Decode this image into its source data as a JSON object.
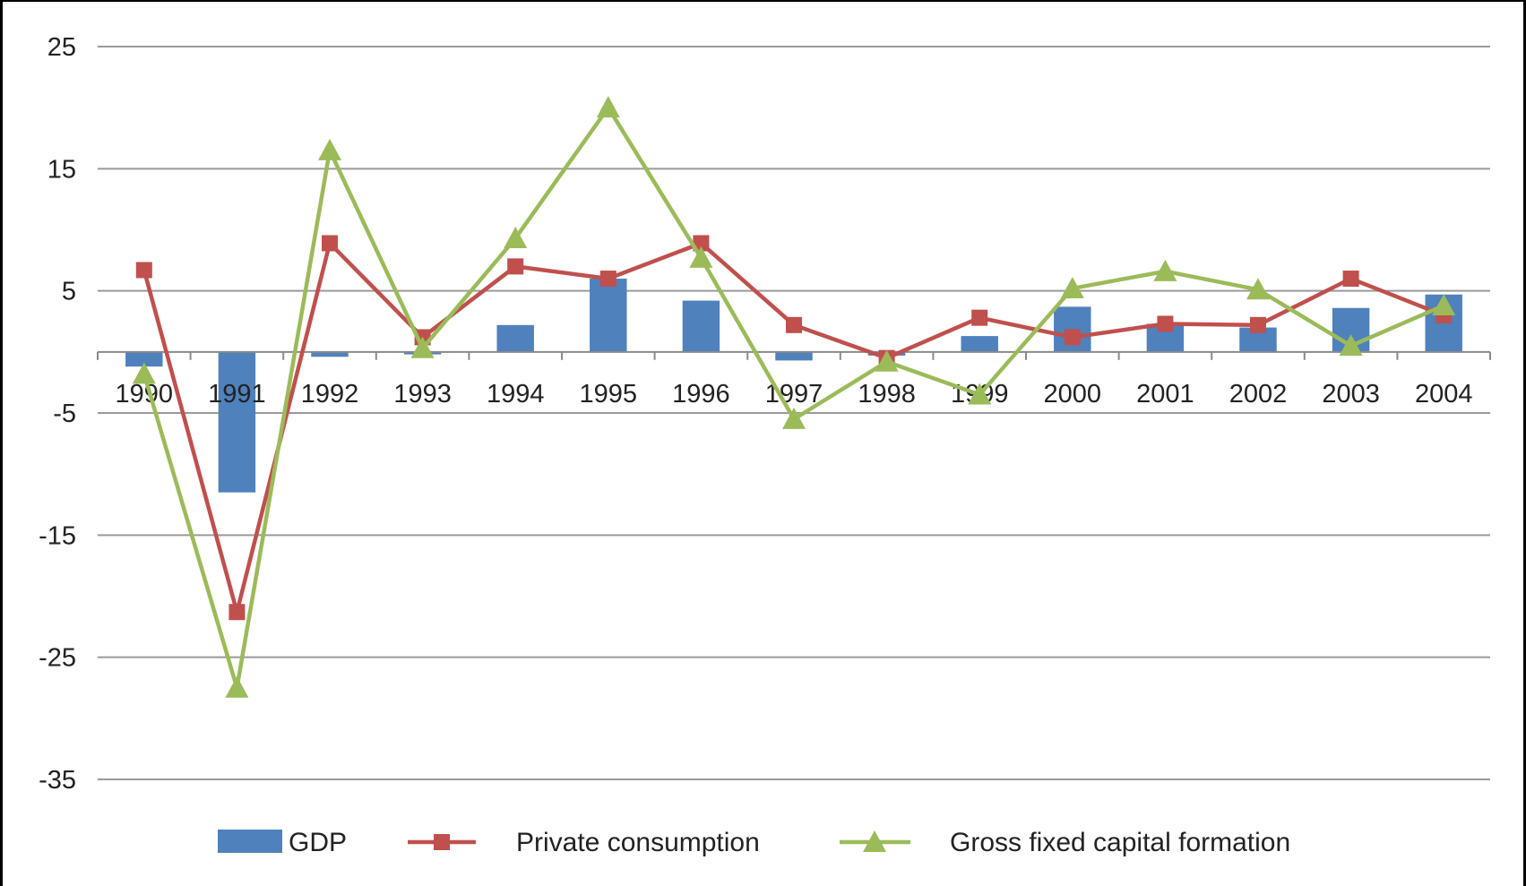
{
  "chart_data": {
    "type": "bar",
    "categories": [
      "1990",
      "1991",
      "1992",
      "1993",
      "1994",
      "1995",
      "1996",
      "1997",
      "1998",
      "1999",
      "2000",
      "2001",
      "2002",
      "2003",
      "2004"
    ],
    "ylim": [
      -35,
      25
    ],
    "yticks": [
      25,
      15,
      5,
      -5,
      -15,
      -25,
      -35
    ],
    "grid": true,
    "legend_position": "bottom",
    "series": [
      {
        "name": "GDP",
        "type": "bar",
        "color": "#4F81BD",
        "values": [
          -1.2,
          -11.5,
          -0.4,
          -0.2,
          2.2,
          6.0,
          4.2,
          -0.7,
          -0.3,
          1.3,
          3.7,
          2.3,
          2.0,
          3.6,
          4.7
        ]
      },
      {
        "name": "Private consumption",
        "type": "line",
        "marker": "square",
        "color": "#C0504D",
        "values": [
          6.7,
          -21.3,
          8.9,
          1.2,
          7.0,
          6.0,
          8.9,
          2.2,
          -0.5,
          2.8,
          1.2,
          2.3,
          2.2,
          6.0,
          3.0
        ]
      },
      {
        "name": "Gross fixed capital formation",
        "type": "line",
        "marker": "triangle",
        "color": "#9BBB59",
        "values": [
          -1.8,
          -27.5,
          16.5,
          0.3,
          9.3,
          20.0,
          7.7,
          -5.5,
          -0.8,
          -3.5,
          5.2,
          6.6,
          5.1,
          0.5,
          3.8
        ]
      }
    ]
  }
}
